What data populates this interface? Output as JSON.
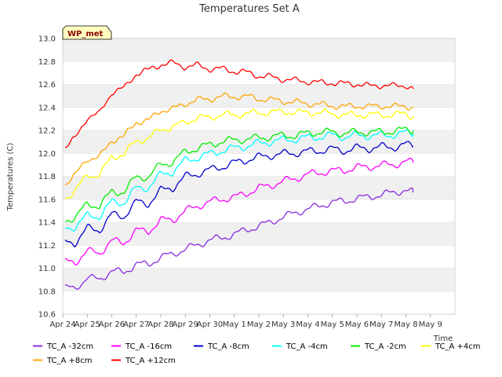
{
  "chart_data": {
    "type": "line",
    "title": "Temperatures Set A",
    "xlabel": "Time",
    "ylabel": "Temperatures (C)",
    "badge": "WP_met",
    "xlim": [
      0,
      16
    ],
    "ylim": [
      10.6,
      13.0
    ],
    "yticks": [
      "10.6",
      "10.8",
      "11.0",
      "11.2",
      "11.4",
      "11.6",
      "11.8",
      "12.0",
      "12.2",
      "12.4",
      "12.6",
      "12.8",
      "13.0"
    ],
    "xticks": [
      "Apr 24",
      "Apr 25",
      "Apr 26",
      "Apr 27",
      "Apr 28",
      "Apr 29",
      "Apr 30",
      "May 1",
      "May 2",
      "May 3",
      "May 4",
      "May 5",
      "May 6",
      "May 7",
      "May 8",
      "May 9"
    ],
    "grid": "horizontal bands",
    "legend_position": "bottom",
    "x_days": [
      0.1,
      0.5,
      1.0,
      1.5,
      2.0,
      2.5,
      3.0,
      3.5,
      4.0,
      4.5,
      5.0,
      5.5,
      6.0,
      6.5,
      7.0,
      7.5,
      8.0,
      8.5,
      9.0,
      9.5,
      10.0,
      10.5,
      11.0,
      11.5,
      12.0,
      12.5,
      13.0,
      13.5,
      14.0,
      14.3
    ],
    "series": [
      {
        "name": "TC_A -32cm",
        "color": "#8a2be2",
        "values": [
          10.83,
          10.82,
          10.92,
          10.9,
          10.98,
          10.96,
          11.04,
          11.03,
          11.1,
          11.12,
          11.17,
          11.2,
          11.25,
          11.26,
          11.3,
          11.33,
          11.37,
          11.4,
          11.45,
          11.48,
          11.52,
          11.54,
          11.58,
          11.58,
          11.61,
          11.62,
          11.64,
          11.66,
          11.68,
          11.66
        ]
      },
      {
        "name": "TC_A -16cm",
        "color": "#ff00ff",
        "values": [
          11.06,
          11.05,
          11.15,
          11.13,
          11.24,
          11.22,
          11.33,
          11.32,
          11.42,
          11.42,
          11.5,
          11.54,
          11.58,
          11.6,
          11.62,
          11.65,
          11.7,
          11.72,
          11.76,
          11.78,
          11.82,
          11.83,
          11.85,
          11.85,
          11.88,
          11.88,
          11.9,
          11.9,
          11.93,
          11.92
        ]
      },
      {
        "name": "TC_A -8cm",
        "color": "#0000cd",
        "values": [
          11.23,
          11.22,
          11.35,
          11.33,
          11.47,
          11.45,
          11.58,
          11.56,
          11.68,
          11.7,
          11.8,
          11.82,
          11.86,
          11.88,
          11.92,
          11.94,
          11.97,
          11.98,
          12.0,
          12.0,
          12.02,
          12.02,
          12.04,
          12.02,
          12.05,
          12.04,
          12.06,
          12.05,
          12.08,
          12.06
        ]
      },
      {
        "name": "TC_A -4cm",
        "color": "#00ffff",
        "values": [
          11.35,
          11.36,
          11.46,
          11.45,
          11.58,
          11.57,
          11.7,
          11.7,
          11.82,
          11.84,
          11.94,
          11.96,
          12.0,
          12.02,
          12.05,
          12.06,
          12.09,
          12.1,
          12.12,
          12.12,
          12.14,
          12.14,
          12.16,
          12.14,
          12.16,
          12.15,
          12.16,
          12.16,
          12.18,
          12.17
        ]
      },
      {
        "name": "TC_A -2cm",
        "color": "#00ee00",
        "values": [
          11.42,
          11.44,
          11.56,
          11.54,
          11.67,
          11.66,
          11.8,
          11.79,
          11.91,
          11.92,
          12.02,
          12.04,
          12.08,
          12.1,
          12.12,
          12.12,
          12.14,
          12.14,
          12.16,
          12.15,
          12.18,
          12.18,
          12.19,
          12.17,
          12.19,
          12.18,
          12.19,
          12.19,
          12.21,
          12.2
        ]
      },
      {
        "name": "TC_A +4cm",
        "color": "#ffff00",
        "values": [
          11.62,
          11.66,
          11.82,
          11.8,
          11.98,
          11.98,
          12.12,
          12.12,
          12.22,
          12.22,
          12.28,
          12.3,
          12.32,
          12.33,
          12.34,
          12.34,
          12.36,
          12.35,
          12.37,
          12.35,
          12.36,
          12.35,
          12.35,
          12.33,
          12.34,
          12.33,
          12.34,
          12.33,
          12.35,
          12.32
        ]
      },
      {
        "name": "TC_A +8cm",
        "color": "#ffa500",
        "values": [
          11.74,
          11.8,
          11.96,
          11.96,
          12.12,
          12.14,
          12.28,
          12.28,
          12.38,
          12.38,
          12.44,
          12.46,
          12.48,
          12.49,
          12.5,
          12.49,
          12.48,
          12.46,
          12.46,
          12.44,
          12.44,
          12.42,
          12.42,
          12.4,
          12.42,
          12.4,
          12.42,
          12.4,
          12.42,
          12.4
        ]
      },
      {
        "name": "TC_A +12cm",
        "color": "#ff0000",
        "values": [
          12.06,
          12.12,
          12.32,
          12.34,
          12.54,
          12.56,
          12.7,
          12.72,
          12.78,
          12.78,
          12.76,
          12.76,
          12.74,
          12.73,
          12.72,
          12.7,
          12.68,
          12.66,
          12.65,
          12.63,
          12.63,
          12.61,
          12.62,
          12.6,
          12.61,
          12.58,
          12.6,
          12.58,
          12.6,
          12.56
        ]
      }
    ]
  }
}
